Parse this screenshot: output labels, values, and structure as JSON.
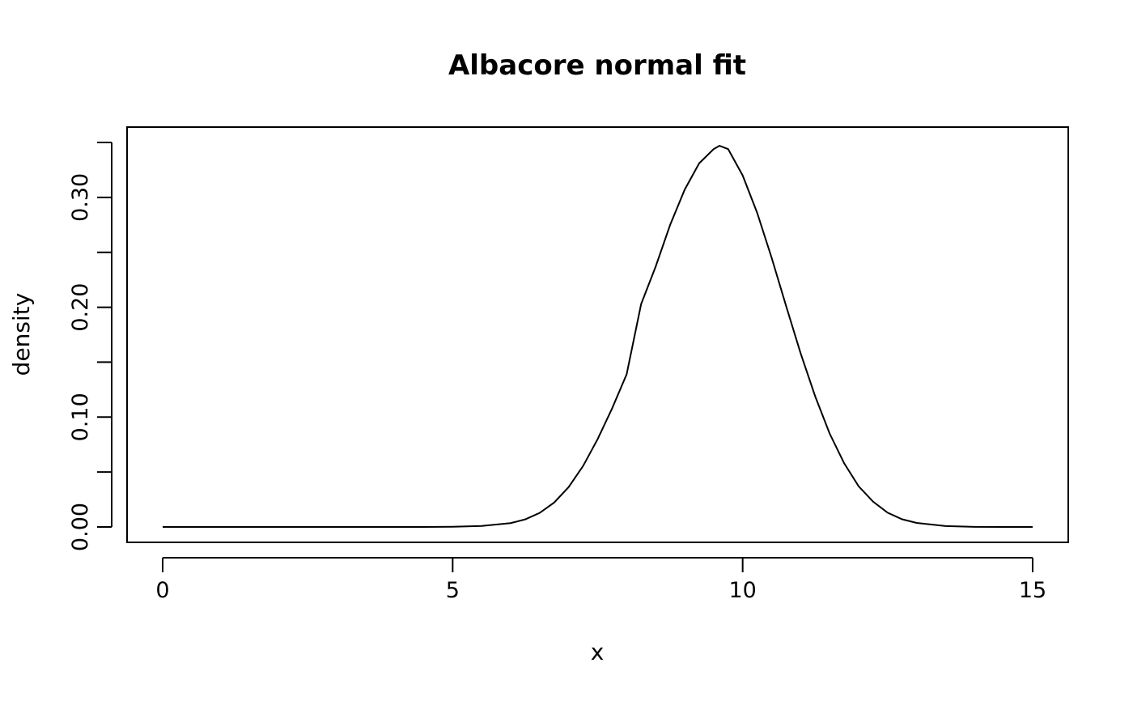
{
  "chart_data": {
    "type": "line",
    "title": "Albacore normal fit",
    "xlabel": "x",
    "ylabel": "density",
    "xlim": [
      0,
      15
    ],
    "ylim": [
      0,
      0.35
    ],
    "x_ticks": [
      "0",
      "5",
      "10",
      "15"
    ],
    "y_ticks": [
      "0.00",
      "0.10",
      "0.20",
      "0.30"
    ],
    "grid": false,
    "legend": "none",
    "line_color": "#000000",
    "series": [
      {
        "x": [
          0,
          0.5,
          1,
          1.5,
          2,
          2.5,
          3,
          3.5,
          4,
          4.5,
          5,
          5.5,
          6,
          6.25,
          6.5,
          6.75,
          7,
          7.25,
          7.5,
          7.75,
          8,
          8.25,
          8.5,
          8.75,
          9,
          9.25,
          9.5,
          9.6,
          9.75,
          10,
          10.25,
          10.5,
          10.75,
          11,
          11.25,
          11.5,
          11.75,
          12,
          12.25,
          12.5,
          12.75,
          13,
          13.5,
          14,
          14.5,
          15
        ],
        "y": [
          0,
          0,
          0,
          0,
          0,
          0,
          0,
          0,
          0,
          0,
          0.0002,
          0.0009,
          0.0035,
          0.0069,
          0.0128,
          0.0222,
          0.0363,
          0.0556,
          0.08,
          0.108,
          0.139,
          0.203,
          0.237,
          0.275,
          0.307,
          0.331,
          0.344,
          0.347,
          0.344,
          0.32,
          0.286,
          0.245,
          0.201,
          0.158,
          0.119,
          0.085,
          0.058,
          0.037,
          0.023,
          0.013,
          0.007,
          0.0037,
          0.0008,
          0.0001,
          0,
          0
        ]
      }
    ]
  }
}
